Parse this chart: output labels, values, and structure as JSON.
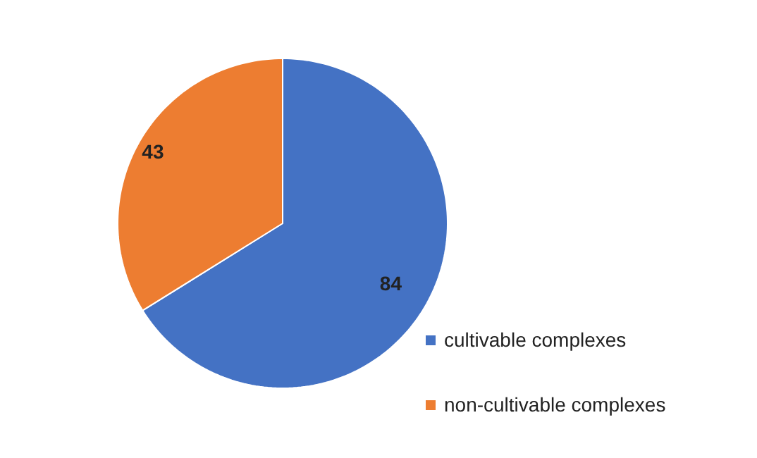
{
  "chart_data": {
    "type": "pie",
    "categories": [
      "cultivable complexes",
      "non-cultivable complexes"
    ],
    "values": [
      84,
      43
    ],
    "colors": [
      "#4472c4",
      "#ed7d31"
    ],
    "data_labels": true,
    "legend": "right"
  }
}
